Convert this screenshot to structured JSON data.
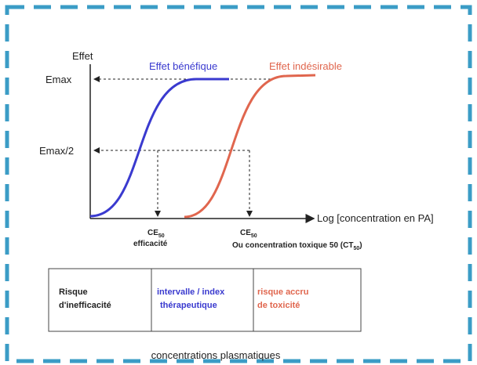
{
  "axis": {
    "y_label": "Effet",
    "x_label": "Log [concentration en PA]",
    "emax": "Emax",
    "emax_half": "Emax/2"
  },
  "curves": {
    "benefit": "Effet bénéfique",
    "adverse": "Effet indésirable"
  },
  "markers": {
    "efficacy": {
      "main": "CE",
      "sub": "50",
      "caption": "efficacité"
    },
    "toxic": {
      "main": "CE",
      "sub": "50",
      "caption_main": "Ou concentration toxique 50 (CT",
      "caption_sub": "50",
      "caption_end": ")"
    }
  },
  "table": {
    "cells": [
      [
        "Risque",
        "d'inefficacité"
      ],
      [
        "intervalle / index",
        "thérapeutique"
      ],
      [
        "risque accru",
        "de toxicité"
      ]
    ]
  },
  "footer": "concentrations plasmatiques"
}
